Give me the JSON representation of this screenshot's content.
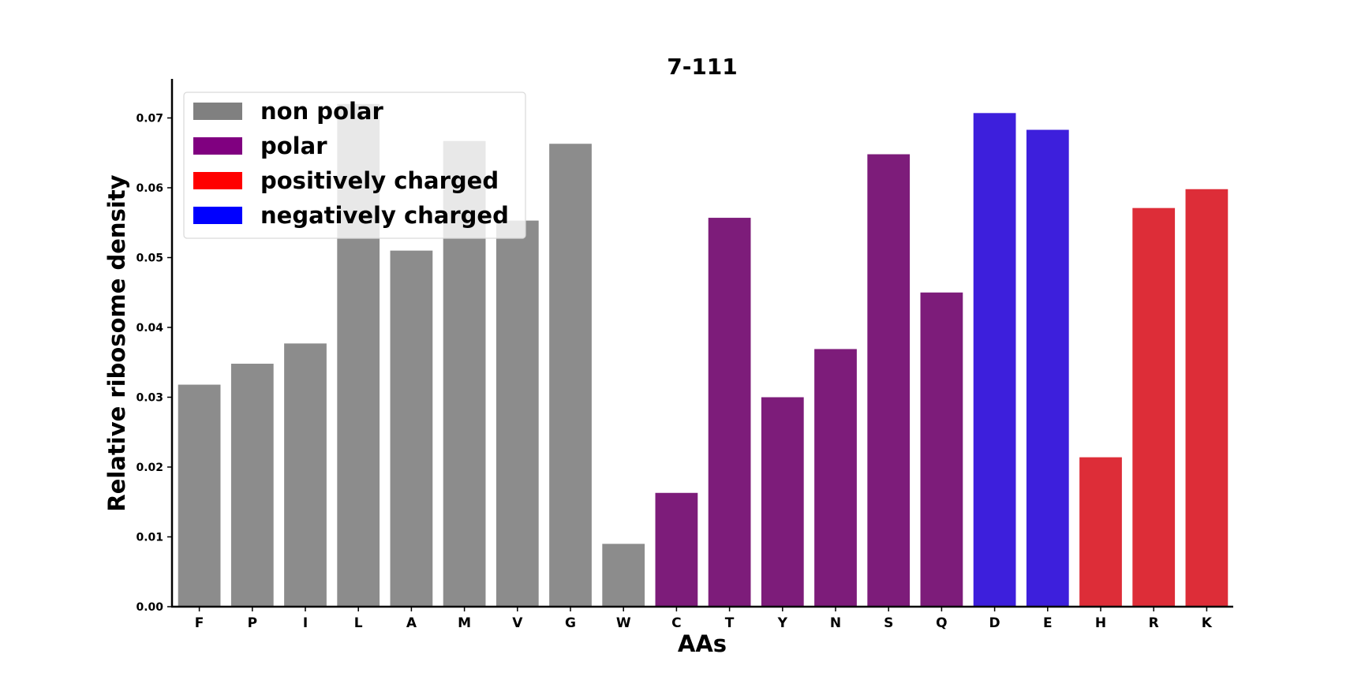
{
  "chart_data": {
    "type": "bar",
    "title": "7-111",
    "xlabel": "AAs",
    "ylabel": "Relative ribosome density",
    "ylim": [
      0,
      0.0755
    ],
    "yticks": [
      "0.00",
      "0.01",
      "0.02",
      "0.03",
      "0.04",
      "0.05",
      "0.06",
      "0.07"
    ],
    "grid": false,
    "legend_position": "top-left",
    "categories": [
      "F",
      "P",
      "I",
      "L",
      "A",
      "M",
      "V",
      "G",
      "W",
      "C",
      "T",
      "Y",
      "N",
      "S",
      "Q",
      "D",
      "E",
      "H",
      "R",
      "K"
    ],
    "values": [
      0.0318,
      0.0348,
      0.0377,
      0.072,
      0.051,
      0.0667,
      0.0553,
      0.0663,
      0.009,
      0.0163,
      0.0557,
      0.03,
      0.0369,
      0.0648,
      0.045,
      0.0707,
      0.0683,
      0.0214,
      0.0571,
      0.0598
    ],
    "groups": [
      "non polar",
      "non polar",
      "non polar",
      "non polar",
      "non polar",
      "non polar",
      "non polar",
      "non polar",
      "non polar",
      "polar",
      "polar",
      "polar",
      "polar",
      "polar",
      "polar",
      "negatively charged",
      "negatively charged",
      "positively charged",
      "positively charged",
      "positively charged"
    ],
    "legend": [
      {
        "label": "non polar",
        "color": "#808080"
      },
      {
        "label": "polar",
        "color": "#800080"
      },
      {
        "label": "positively charged",
        "color": "#ff0000"
      },
      {
        "label": "negatively charged",
        "color": "#0000ff"
      }
    ],
    "bar_colors": {
      "non polar": "#8c8c8c",
      "polar": "#7d1c7a",
      "positively charged": "#dd2d38",
      "negatively charged": "#3d1fdc"
    }
  }
}
